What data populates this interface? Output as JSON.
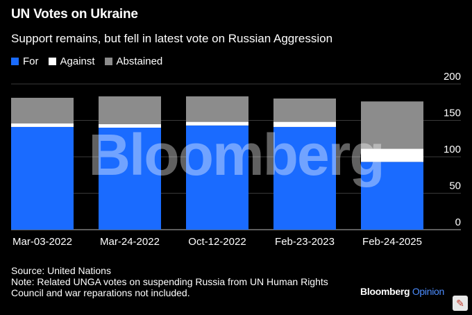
{
  "title": "UN Votes on Ukraine",
  "subtitle": "Support remains, but fell in latest vote on Russian Aggression",
  "legend": [
    {
      "label": "For",
      "color": "#1a6bff"
    },
    {
      "label": "Against",
      "color": "#ffffff"
    },
    {
      "label": "Abstained",
      "color": "#8c8c8c"
    }
  ],
  "watermark": "Bloomberg",
  "source": "Source: United Nations",
  "note_line1": "Note: Related UNGA votes on suspending Russia from UN Human Rights",
  "note_line2": "Council and war reparations not included.",
  "brand": {
    "name": "Bloomberg",
    "suffix": "Opinion"
  },
  "corner_icon": "tool-icon",
  "chart_data": {
    "type": "bar",
    "stacked": true,
    "title": "UN Votes on Ukraine",
    "categories": [
      "Mar-03-2022",
      "Mar-24-2022",
      "Oct-12-2022",
      "Feb-23-2023",
      "Feb-24-2025"
    ],
    "series": [
      {
        "name": "For",
        "values": [
          141,
          140,
          143,
          141,
          93
        ],
        "color": "#1a6bff"
      },
      {
        "name": "Against",
        "values": [
          5,
          5,
          5,
          7,
          18
        ],
        "color": "#ffffff"
      },
      {
        "name": "Abstained",
        "values": [
          35,
          38,
          35,
          32,
          65
        ],
        "color": "#8c8c8c"
      }
    ],
    "ylim": [
      0,
      200
    ],
    "yticks": [
      0,
      50,
      100,
      150,
      200
    ],
    "ytick_labels": [
      "0",
      "50",
      "100",
      "150",
      "200"
    ],
    "y_axis_side": "right",
    "xlabel": "",
    "ylabel": ""
  }
}
